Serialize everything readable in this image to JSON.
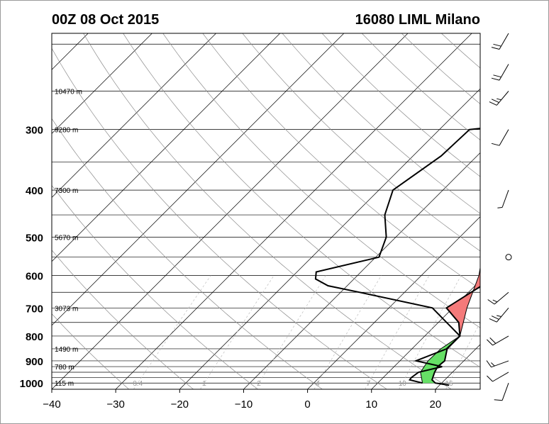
{
  "header": {
    "time_label": "00Z 08 Oct 2015",
    "station_label": "16080 LIML Milano"
  },
  "chart_data": {
    "type": "skew-t",
    "title_left": "00Z 08 Oct 2015",
    "title_right": "16080 LIML Milano",
    "xlim": [
      -40,
      27
    ],
    "x_ticks": [
      -40,
      -30,
      -20,
      -10,
      0,
      10,
      20
    ],
    "x_tick_labels": [
      "−40",
      "−30",
      "−20",
      "−10",
      "0",
      "10",
      "20"
    ],
    "pressure_labels": [
      {
        "p": 300,
        "label": "300"
      },
      {
        "p": 400,
        "label": "400"
      },
      {
        "p": 500,
        "label": "500"
      },
      {
        "p": 600,
        "label": "600"
      },
      {
        "p": 700,
        "label": "700"
      },
      {
        "p": 800,
        "label": "800"
      },
      {
        "p": 900,
        "label": "900"
      },
      {
        "p": 1000,
        "label": "1000"
      }
    ],
    "height_labels": [
      {
        "p": 250,
        "label": "10470 m"
      },
      {
        "p": 300,
        "label": "9280 m"
      },
      {
        "p": 400,
        "label": "7300 m"
      },
      {
        "p": 500,
        "label": "5670 m"
      },
      {
        "p": 700,
        "label": "3073 m"
      },
      {
        "p": 850,
        "label": "1490 m"
      },
      {
        "p": 925,
        "label": "780 m"
      },
      {
        "p": 1000,
        "label": "115 m"
      }
    ],
    "mixing_ratio_labels": [
      "0.4",
      "1",
      "2",
      "4",
      "7",
      "10",
      "16"
    ],
    "temperature_profile": [
      {
        "p": 1010,
        "t": 21.5
      },
      {
        "p": 1000,
        "t": 19.0
      },
      {
        "p": 985,
        "t": 18.0
      },
      {
        "p": 950,
        "t": 17.2
      },
      {
        "p": 925,
        "t": 16.8
      },
      {
        "p": 900,
        "t": 17.0
      },
      {
        "p": 850,
        "t": 15.5
      },
      {
        "p": 800,
        "t": 15.5
      },
      {
        "p": 750,
        "t": 13.2
      },
      {
        "p": 700,
        "t": 9.0
      },
      {
        "p": 650,
        "t": 10.4
      },
      {
        "p": 600,
        "t": 12.0
      },
      {
        "p": 550,
        "t": 12.0
      },
      {
        "p": 500,
        "t": 9.5
      },
      {
        "p": 450,
        "t": 7.0
      },
      {
        "p": 400,
        "t": 4.3
      },
      {
        "p": 350,
        "t": 0.8
      },
      {
        "p": 300,
        "t": -3.0
      },
      {
        "p": 280,
        "t": -5.2
      },
      {
        "p": 250,
        "t": -6.0
      },
      {
        "p": 230,
        "t": -6.3
      },
      {
        "p": 210,
        "t": -7.0
      },
      {
        "p": 190,
        "t": -6.6
      }
    ],
    "dewpoint_profile": [
      {
        "p": 1000,
        "t": 17.0
      },
      {
        "p": 985,
        "t": 14.5
      },
      {
        "p": 975,
        "t": 14.4
      },
      {
        "p": 950,
        "t": 14.7
      },
      {
        "p": 925,
        "t": 17.5
      },
      {
        "p": 900,
        "t": 12.5
      },
      {
        "p": 850,
        "t": 15.4
      },
      {
        "p": 800,
        "t": 15.5
      },
      {
        "p": 700,
        "t": 6.8
      },
      {
        "p": 650,
        "t": -7.0
      },
      {
        "p": 630,
        "t": -13.0
      },
      {
        "p": 610,
        "t": -16.0
      },
      {
        "p": 590,
        "t": -17.0
      },
      {
        "p": 550,
        "t": -9.5
      },
      {
        "p": 500,
        "t": -11.5
      },
      {
        "p": 450,
        "t": -15.2
      },
      {
        "p": 400,
        "t": -17.8
      },
      {
        "p": 340,
        "t": -15.6
      },
      {
        "p": 300,
        "t": -15.3
      },
      {
        "p": 290,
        "t": -5.4
      },
      {
        "p": 250,
        "t": -16.8
      },
      {
        "p": 235,
        "t": -16.5
      },
      {
        "p": 220,
        "t": -13.8
      },
      {
        "p": 200,
        "t": -15.0
      }
    ],
    "parcel_profile": [
      {
        "p": 1000,
        "t": 17.0
      },
      {
        "p": 950,
        "t": 15.0
      },
      {
        "p": 900,
        "t": 14.4
      },
      {
        "p": 850,
        "t": 14.5
      },
      {
        "p": 800,
        "t": 15.5
      },
      {
        "p": 700,
        "t": 12.2
      },
      {
        "p": 600,
        "t": 9.0
      },
      {
        "p": 500,
        "t": 4.0
      },
      {
        "p": 400,
        "t": -3.0
      },
      {
        "p": 340,
        "t": -8.5
      }
    ],
    "wind_barbs": [
      {
        "p": 1000,
        "dir": 200,
        "speed_kt": 10
      },
      {
        "p": 950,
        "dir": 240,
        "speed_kt": 10
      },
      {
        "p": 900,
        "dir": 250,
        "speed_kt": 15
      },
      {
        "p": 800,
        "dir": 240,
        "speed_kt": 20
      },
      {
        "p": 700,
        "dir": 220,
        "speed_kt": 25
      },
      {
        "p": 650,
        "dir": 230,
        "speed_kt": 15
      },
      {
        "p": 550,
        "dir": 0,
        "speed_kt": 0
      },
      {
        "p": 400,
        "dir": 200,
        "speed_kt": 5
      },
      {
        "p": 300,
        "dir": 210,
        "speed_kt": 10
      },
      {
        "p": 250,
        "dir": 220,
        "speed_kt": 25
      },
      {
        "p": 220,
        "dir": 210,
        "speed_kt": 20
      },
      {
        "p": 190,
        "dir": 210,
        "speed_kt": 20
      }
    ],
    "colors": {
      "cape_fill": "#f47a7a",
      "cin_fill": "#66e066",
      "profile": "#000000",
      "grid": "#000000",
      "dry_adiabat": "#8c8c8c",
      "mixing_ratio": "#b4b4b4"
    },
    "grid": true
  }
}
